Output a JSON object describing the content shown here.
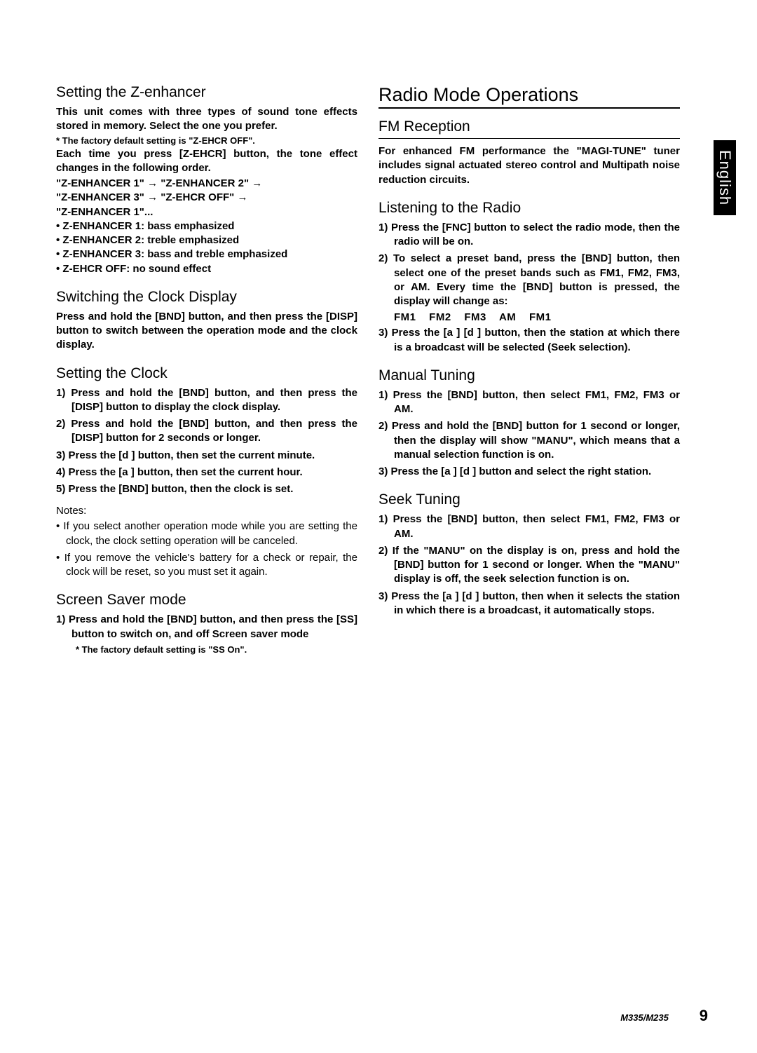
{
  "language_tab": "English",
  "footer": {
    "model": "M335/M235",
    "page": "9"
  },
  "left": {
    "z_enhancer": {
      "title": "Setting the Z-enhancer",
      "intro": "This unit comes with three types of sound tone effects stored in memory. Select the one you prefer.",
      "default_note": "* The factory default setting is \"Z-EHCR OFF\".",
      "press_line": "Each time you press [Z-EHCR] button, the tone effect changes in the following order.",
      "seq1": "\"Z-ENHANCER 1\" → \"Z-ENHANCER 2\" →",
      "seq2": "\"Z-ENHANCER 3\" → \"Z-EHCR OFF\" →",
      "seq3": "\"Z-ENHANCER 1\"...",
      "b1": "• Z-ENHANCER 1: bass emphasized",
      "b2": "• Z-ENHANCER 2: treble emphasized",
      "b3": "• Z-ENHANCER 3: bass and treble emphasized",
      "b4": "• Z-EHCR OFF: no sound effect"
    },
    "clock_switch": {
      "title": "Switching the Clock Display",
      "text": "Press and hold the [BND] button, and then press the [DISP] button to switch between the operation mode and the clock display."
    },
    "clock_set": {
      "title": "Setting the Clock",
      "s1": "1) Press and hold the [BND] button, and then press the [DISP] button to display the clock display.",
      "s2": "2) Press and hold the [BND] button, and then press the [DISP] button for 2 seconds or longer.",
      "s3": "3) Press the [d ] button, then set the current minute.",
      "s4": "4) Press the [a ] button, then set the current hour.",
      "s5": "5) Press the [BND] button, then the clock is set."
    },
    "notes": {
      "head": "Notes:",
      "n1": "• If you select another operation mode while you are setting the clock, the clock setting operation  will be canceled.",
      "n2": "• If you remove the vehicle's battery for a check or repair, the clock will be reset, so you must set it again."
    },
    "screensaver": {
      "title": "Screen Saver mode",
      "s1": "1) Press and hold the [BND] button, and then press the [SS] button to switch on, and off Screen saver mode",
      "default_note": "* The factory default setting is \"SS On\"."
    }
  },
  "right": {
    "main_title": "Radio Mode Operations",
    "fm": {
      "title": "FM Reception",
      "text": "For enhanced FM performance the \"MAGI-TUNE\" tuner includes signal actuated stereo control and Multipath noise reduction circuits."
    },
    "listen": {
      "title": "Listening to the Radio",
      "s1": "1) Press the [FNC] button to select the radio mode, then the radio will be on.",
      "s2": "2) To select a preset band, press the [BND] button, then select one of the preset bands such as FM1, FM2, FM3, or AM. Every time the [BND] button is pressed, the display will change as:",
      "bands": "FM1 FM2 FM3 AM FM1",
      "s3": "3) Press the [a ] [d ] button, then the station at which there is a broadcast will be selected (Seek selection)."
    },
    "manual": {
      "title": "Manual Tuning",
      "s1": "1) Press the [BND] button, then select FM1, FM2, FM3 or AM.",
      "s2": "2) Press and hold the [BND] button for 1 second or longer, then the display will show \"MANU\", which means that a manual selection function is on.",
      "s3": "3) Press the [a ] [d ] button and select the right station."
    },
    "seek": {
      "title": "Seek Tuning",
      "s1": "1) Press the [BND] button, then select FM1, FM2, FM3 or AM.",
      "s2": "2) If the \"MANU\" on the display is on, press and hold the [BND] button for 1 second or longer. When the \"MANU\" display is off, the seek selection function is on.",
      "s3": "3) Press the [a ] [d ] button, then when it selects the station in which there is a broadcast, it automatically stops."
    }
  }
}
